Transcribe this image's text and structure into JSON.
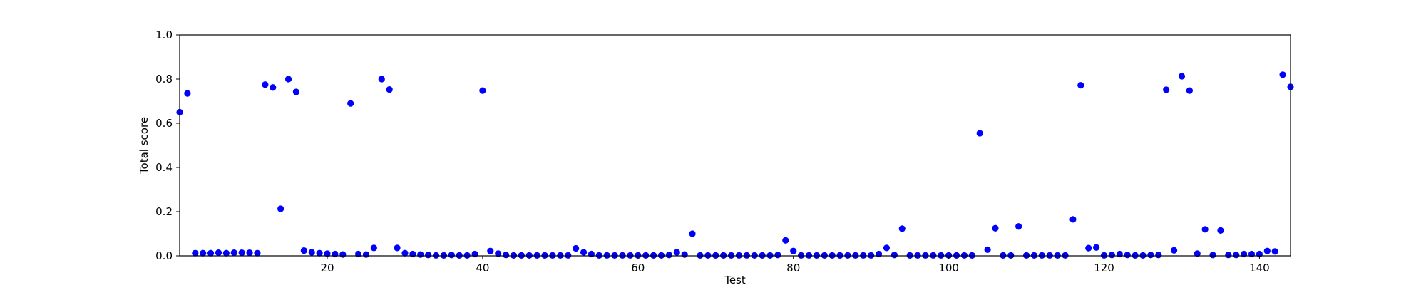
{
  "chart_data": {
    "type": "scatter",
    "title": "",
    "xlabel": "Test",
    "ylabel": "Total score",
    "xlim": [
      1,
      144
    ],
    "ylim": [
      0.0,
      1.0
    ],
    "xticks": [
      20,
      40,
      60,
      80,
      100,
      120,
      140
    ],
    "yticks": [
      0.0,
      0.2,
      0.4,
      0.6,
      0.8,
      1.0
    ],
    "xtick_labels": [
      "20",
      "40",
      "60",
      "80",
      "100",
      "120",
      "140"
    ],
    "ytick_labels": [
      "0.0",
      "0.2",
      "0.4",
      "0.6",
      "0.8",
      "1.0"
    ],
    "grid": false,
    "legend": false,
    "marker_color": "#0000ff",
    "series": [
      {
        "x": [
          1,
          2,
          3,
          4,
          5,
          6,
          7,
          8,
          9,
          10,
          11,
          12,
          13,
          14,
          15,
          16,
          17,
          18,
          19,
          20,
          21,
          22,
          23,
          24,
          25,
          26,
          27,
          28,
          29,
          30,
          31,
          32,
          33,
          34,
          35,
          36,
          37,
          38,
          39,
          40,
          41,
          42,
          43,
          44,
          45,
          46,
          47,
          48,
          49,
          50,
          51,
          52,
          53,
          54,
          55,
          56,
          57,
          58,
          59,
          60,
          61,
          62,
          63,
          64,
          65,
          66,
          67,
          68,
          69,
          70,
          71,
          72,
          73,
          74,
          75,
          76,
          77,
          78,
          79,
          80,
          81,
          82,
          83,
          84,
          85,
          86,
          87,
          88,
          89,
          90,
          91,
          92,
          93,
          94,
          95,
          96,
          97,
          98,
          99,
          100,
          101,
          102,
          103,
          104,
          105,
          106,
          107,
          108,
          109,
          110,
          111,
          112,
          113,
          114,
          115,
          116,
          117,
          118,
          119,
          120,
          121,
          122,
          123,
          124,
          125,
          126,
          127,
          128,
          129,
          130,
          131,
          132,
          133,
          134,
          135,
          136,
          137,
          138,
          139,
          140,
          141,
          142,
          143,
          144
        ],
        "y": [
          0.65,
          0.735,
          0.012,
          0.012,
          0.012,
          0.014,
          0.012,
          0.014,
          0.014,
          0.014,
          0.012,
          0.775,
          0.762,
          0.213,
          0.8,
          0.742,
          0.024,
          0.016,
          0.012,
          0.01,
          0.008,
          0.006,
          0.69,
          0.008,
          0.006,
          0.036,
          0.8,
          0.753,
          0.036,
          0.012,
          0.008,
          0.006,
          0.004,
          0.002,
          0.002,
          0.004,
          0.002,
          0.002,
          0.008,
          0.748,
          0.022,
          0.01,
          0.004,
          0.002,
          0.002,
          0.002,
          0.002,
          0.002,
          0.002,
          0.002,
          0.002,
          0.034,
          0.016,
          0.008,
          0.002,
          0.002,
          0.002,
          0.002,
          0.002,
          0.002,
          0.002,
          0.002,
          0.002,
          0.004,
          0.016,
          0.006,
          0.1,
          0.002,
          0.002,
          0.002,
          0.002,
          0.002,
          0.002,
          0.002,
          0.002,
          0.002,
          0.002,
          0.004,
          0.07,
          0.022,
          0.002,
          0.002,
          0.002,
          0.002,
          0.002,
          0.002,
          0.002,
          0.002,
          0.002,
          0.002,
          0.008,
          0.036,
          0.004,
          0.123,
          0.002,
          0.002,
          0.002,
          0.002,
          0.002,
          0.002,
          0.002,
          0.002,
          0.002,
          0.555,
          0.028,
          0.125,
          0.002,
          0.002,
          0.133,
          0.002,
          0.002,
          0.002,
          0.002,
          0.002,
          0.002,
          0.165,
          0.772,
          0.035,
          0.038,
          0.002,
          0.004,
          0.008,
          0.004,
          0.002,
          0.002,
          0.004,
          0.004,
          0.752,
          0.025,
          0.813,
          0.748,
          0.01,
          0.12,
          0.004,
          0.115,
          0.004,
          0.004,
          0.008,
          0.008,
          0.008,
          0.022,
          0.02,
          0.82,
          0.765
        ]
      }
    ]
  }
}
